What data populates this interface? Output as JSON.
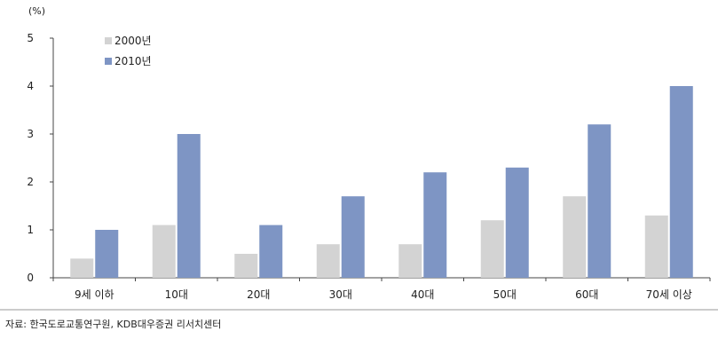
{
  "chart_data": {
    "type": "bar",
    "unit": "(%)",
    "categories": [
      "9세 이하",
      "10대",
      "20대",
      "30대",
      "40대",
      "50대",
      "60대",
      "70세 이상"
    ],
    "series": [
      {
        "name": "2000년",
        "values": [
          0.4,
          1.1,
          0.5,
          0.7,
          0.7,
          1.2,
          1.7,
          1.3
        ],
        "color": "#d3d3d3"
      },
      {
        "name": "2010년",
        "values": [
          1.0,
          3.0,
          1.1,
          1.7,
          2.2,
          2.3,
          3.2,
          4.0
        ],
        "color": "#7e95c4"
      }
    ],
    "ylim": [
      0,
      5
    ],
    "yticks": [
      "0",
      "1",
      "2",
      "3",
      "4",
      "5"
    ],
    "legend_position": "top-left",
    "grid": false
  },
  "source": "자료: 한국도로교통연구원, KDB대우증권 리서치센터"
}
